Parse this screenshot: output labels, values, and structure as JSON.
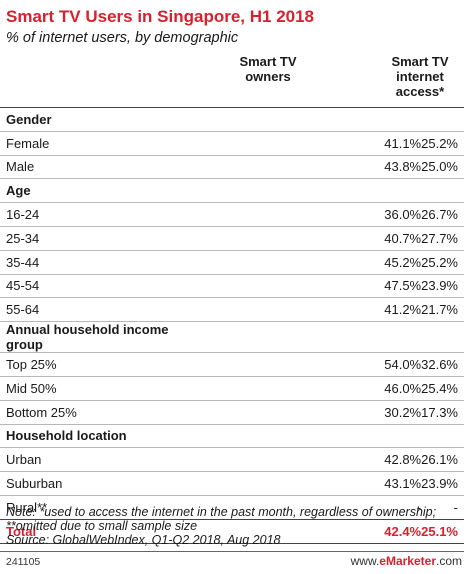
{
  "header": {
    "title": "Smart TV Users in Singapore, H1 2018",
    "subtitle": "% of internet users, by demographic"
  },
  "chart_data": {
    "type": "table",
    "title": "Smart TV Users in Singapore, H1 2018",
    "subtitle": "% of internet users, by demographic",
    "columns": [
      "",
      "Smart TV owners",
      "Smart TV internet access*"
    ],
    "rows": [
      {
        "kind": "group",
        "label": "Gender",
        "v1": "",
        "v2": ""
      },
      {
        "kind": "row",
        "label": "Female",
        "v1": "41.1%",
        "v2": "25.2%"
      },
      {
        "kind": "row",
        "label": "Male",
        "v1": "43.8%",
        "v2": "25.0%"
      },
      {
        "kind": "group",
        "label": "Age",
        "v1": "",
        "v2": ""
      },
      {
        "kind": "row",
        "label": "16-24",
        "v1": "36.0%",
        "v2": "26.7%"
      },
      {
        "kind": "row",
        "label": "25-34",
        "v1": "40.7%",
        "v2": "27.7%"
      },
      {
        "kind": "row",
        "label": "35-44",
        "v1": "45.2%",
        "v2": "25.2%"
      },
      {
        "kind": "row",
        "label": "45-54",
        "v1": "47.5%",
        "v2": "23.9%"
      },
      {
        "kind": "row",
        "label": "55-64",
        "v1": "41.2%",
        "v2": "21.7%"
      },
      {
        "kind": "group",
        "label": "Annual household income group",
        "v1": "",
        "v2": ""
      },
      {
        "kind": "row",
        "label": "Top 25%",
        "v1": "54.0%",
        "v2": "32.6%"
      },
      {
        "kind": "row",
        "label": "Mid 50%",
        "v1": "46.0%",
        "v2": "25.4%"
      },
      {
        "kind": "row",
        "label": "Bottom 25%",
        "v1": "30.2%",
        "v2": "17.3%"
      },
      {
        "kind": "group",
        "label": "Household location",
        "v1": "",
        "v2": ""
      },
      {
        "kind": "row",
        "label": "Urban",
        "v1": "42.8%",
        "v2": "26.1%"
      },
      {
        "kind": "row",
        "label": "Suburban",
        "v1": "43.1%",
        "v2": "23.9%"
      },
      {
        "kind": "row",
        "label": "Rural**",
        "v1": "-",
        "v2": "-"
      },
      {
        "kind": "total",
        "label": "Total",
        "v1": "42.4%",
        "v2": "25.1%"
      }
    ]
  },
  "table_header": {
    "col1_line1": "Smart TV",
    "col1_line2": "owners",
    "col2_line1": "Smart TV",
    "col2_line2": "internet",
    "col2_line3": "access*"
  },
  "footer": {
    "note": "Note: *used to access the internet in the past month, regardless of ownership; **omitted due to small sample size",
    "source": "Source: GlobalWebIndex, Q1-Q2 2018, Aug 2018",
    "id": "241105",
    "brand_prefix": "www.",
    "brand_name": "eMarketer",
    "brand_suffix": ".com"
  },
  "colors": {
    "accent": "#d6222e"
  }
}
